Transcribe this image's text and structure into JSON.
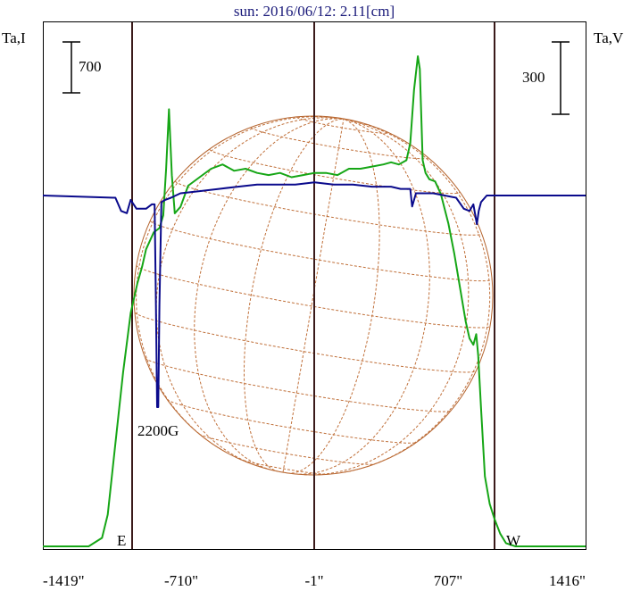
{
  "chart_data": {
    "type": "line",
    "title": "sun: 2016/06/12: 2.11[cm]",
    "y_left_label": "Ta,I",
    "y_right_label": "Ta,V",
    "x_tick_labels": [
      "-1419\"",
      "-710\"",
      "-1\"",
      "707\"",
      "1416\""
    ],
    "xlim": [
      -1419,
      1416
    ],
    "scale_bar_left": "700",
    "scale_bar_right": "300",
    "limb_labels": {
      "east": "E",
      "west": "W"
    },
    "annotation": "2200G",
    "series": [
      {
        "color": "#16a616",
        "x": [
          -1419,
          -1180,
          -1110,
          -1080,
          -1050,
          -1000,
          -960,
          -925,
          -900,
          -880,
          -860,
          -840,
          -810,
          -790,
          -775,
          -760,
          -745,
          -730,
          -700,
          -660,
          -600,
          -540,
          -480,
          -420,
          -360,
          -300,
          -240,
          -180,
          -120,
          -60,
          0,
          60,
          120,
          180,
          240,
          300,
          360,
          400,
          440,
          480,
          500,
          520,
          540,
          550,
          565,
          580,
          600,
          630,
          660,
          700,
          730,
          760,
          790,
          810,
          830,
          845,
          855,
          870,
          890,
          915,
          940,
          970,
          1000,
          1050,
          1100,
          1150,
          1416
        ],
        "y": [
          0,
          0,
          40,
          150,
          400,
          820,
          1100,
          1240,
          1320,
          1400,
          1440,
          1480,
          1500,
          1560,
          1780,
          2060,
          1750,
          1570,
          1600,
          1700,
          1740,
          1780,
          1800,
          1770,
          1780,
          1760,
          1750,
          1760,
          1740,
          1750,
          1760,
          1760,
          1750,
          1780,
          1780,
          1790,
          1800,
          1810,
          1800,
          1820,
          1900,
          2150,
          2310,
          2250,
          1820,
          1760,
          1730,
          1720,
          1660,
          1520,
          1380,
          1220,
          1060,
          980,
          950,
          1000,
          900,
          650,
          330,
          200,
          130,
          60,
          15,
          0,
          0,
          0,
          0
        ]
      },
      {
        "color": "#0a0a8c",
        "x": [
          -1419,
          -1040,
          -1010,
          -980,
          -960,
          -930,
          -880,
          -850,
          -835,
          -828,
          -822,
          -816,
          -810,
          -800,
          -780,
          -750,
          -700,
          -600,
          -500,
          -400,
          -300,
          -200,
          -100,
          0,
          100,
          200,
          300,
          400,
          450,
          500,
          510,
          530,
          560,
          620,
          680,
          740,
          780,
          810,
          830,
          848,
          858,
          870,
          900,
          1000,
          1416
        ],
        "y": [
          0,
          -5,
          -35,
          -40,
          -10,
          -30,
          -30,
          -20,
          -20,
          -250,
          -480,
          -480,
          -250,
          -15,
          -10,
          -5,
          5,
          10,
          15,
          20,
          25,
          25,
          25,
          30,
          25,
          25,
          20,
          20,
          15,
          15,
          -25,
          5,
          5,
          5,
          0,
          -5,
          -30,
          -35,
          -20,
          -65,
          -35,
          -15,
          0,
          0,
          0
        ]
      }
    ]
  }
}
